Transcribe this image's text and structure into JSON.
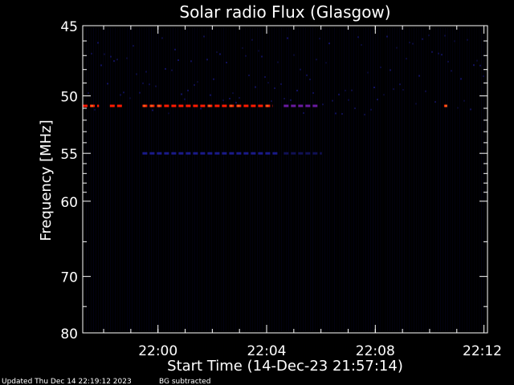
{
  "chart_data": {
    "type": "heatmap",
    "title": "Solar radio Flux (Glasgow)",
    "xlabel": "Start Time (14-Dec-23 21:57:14)",
    "ylabel": "Frequency [MHz]",
    "x_unit": "minutes since 21:57:14",
    "xlim": [
      0,
      14.9
    ],
    "ylim": [
      45,
      80
    ],
    "y_ticks_major": [
      45,
      50,
      55,
      60,
      70,
      80
    ],
    "y_ticks_minor": [
      65,
      75
    ],
    "x_ticks": [
      {
        "label": "22:00",
        "value": 2.77
      },
      {
        "label": "22:04",
        "value": 6.77
      },
      {
        "label": "22:08",
        "value": 10.77
      },
      {
        "label": "22:12",
        "value": 14.77
      }
    ],
    "x_minor_step_min": 1,
    "colors": {
      "background": "#000000",
      "noise": "#05052a",
      "band_dark_blue": "#1a1a8a",
      "band_purple": "#6a1aa0",
      "band_red": "#ff1a00",
      "band_orange": "#ff5a1a",
      "axes": "#ffffff"
    },
    "emission_bands": [
      {
        "freq_mhz": 50.8,
        "x_start": 0.0,
        "x_end": 0.6,
        "intensity": "high"
      },
      {
        "freq_mhz": 50.8,
        "x_start": 1.0,
        "x_end": 1.5,
        "intensity": "high"
      },
      {
        "freq_mhz": 50.8,
        "x_start": 2.2,
        "x_end": 7.0,
        "intensity": "high"
      },
      {
        "freq_mhz": 50.8,
        "x_start": 7.4,
        "x_end": 8.7,
        "intensity": "medium"
      },
      {
        "freq_mhz": 50.8,
        "x_start": 13.3,
        "x_end": 13.4,
        "intensity": "high"
      },
      {
        "freq_mhz": 55.0,
        "x_start": 2.2,
        "x_end": 7.2,
        "intensity": "low"
      },
      {
        "freq_mhz": 55.0,
        "x_start": 7.4,
        "x_end": 8.8,
        "intensity": "very_low"
      }
    ],
    "grid": false
  },
  "footer": {
    "updated": "Updated Thu Dec 14 22:19:12 2023",
    "note": "BG subtracted"
  }
}
